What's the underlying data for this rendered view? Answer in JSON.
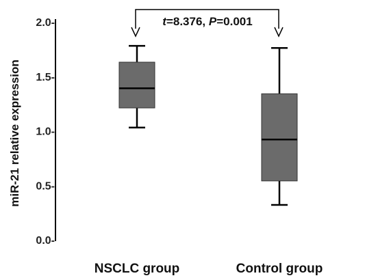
{
  "chart_data": {
    "type": "box",
    "title": "",
    "xlabel": "",
    "ylabel": "miR-21 relative expression",
    "ylim": [
      0.0,
      2.0
    ],
    "yticks": [
      0.0,
      0.5,
      1.0,
      1.5,
      2.0
    ],
    "ytick_labels": [
      "0.0-",
      "0.5-",
      "1.0-",
      "1.5-",
      "2.0-"
    ],
    "categories": [
      "NSCLC group",
      "Control group"
    ],
    "boxes": [
      {
        "category": "NSCLC group",
        "min": 1.03,
        "q1": 1.21,
        "median": 1.39,
        "q3": 1.63,
        "max": 1.78
      },
      {
        "category": "Control group",
        "min": 0.32,
        "q1": 0.54,
        "median": 0.92,
        "q3": 1.34,
        "max": 1.76
      }
    ],
    "annotation": {
      "t_label": "t",
      "t_value": "=8.376, ",
      "p_label": "P",
      "p_value": "=0.001"
    },
    "box_color": "#6b6b6b",
    "grid": false
  }
}
